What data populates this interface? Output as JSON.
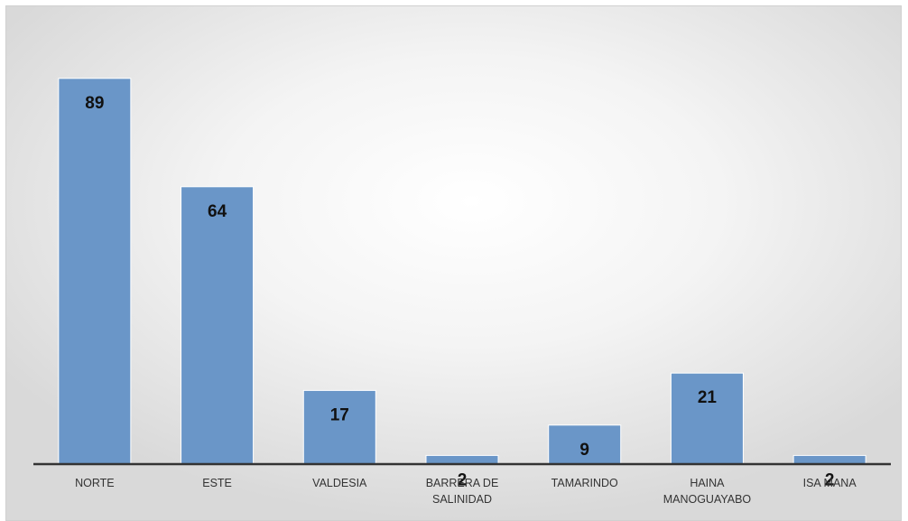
{
  "chart_data": {
    "type": "bar",
    "categories": [
      "NORTE",
      "ESTE",
      "VALDESIA",
      "BARRERA DE SALINIDAD",
      "TAMARINDO",
      "HAINA MANOGUAYABO",
      "ISA MANA"
    ],
    "values": [
      89,
      64,
      17,
      2,
      9,
      21,
      2
    ],
    "color": "#6a96c8",
    "ylim": [
      0,
      100
    ]
  }
}
